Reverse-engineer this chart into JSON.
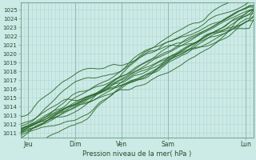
{
  "title": "Pression niveau de la mer( hPa )",
  "ylabel_ticks": [
    1011,
    1012,
    1013,
    1014,
    1015,
    1016,
    1017,
    1018,
    1019,
    1020,
    1021,
    1022,
    1023,
    1024,
    1025
  ],
  "ylim": [
    1010.5,
    1025.8
  ],
  "xlim": [
    0,
    120
  ],
  "x_day_positions": [
    4,
    28,
    52,
    76,
    116
  ],
  "x_day_labels": [
    "Jeu",
    "Dim",
    "Ven",
    "Sam",
    "Lun"
  ],
  "bg_color": "#cceae6",
  "grid_color_minor": "#b0d8d2",
  "grid_color_major": "#90c0b8",
  "line_color": "#2d6a2d",
  "n_points": 120,
  "figsize": [
    3.2,
    2.0
  ],
  "dpi": 100
}
